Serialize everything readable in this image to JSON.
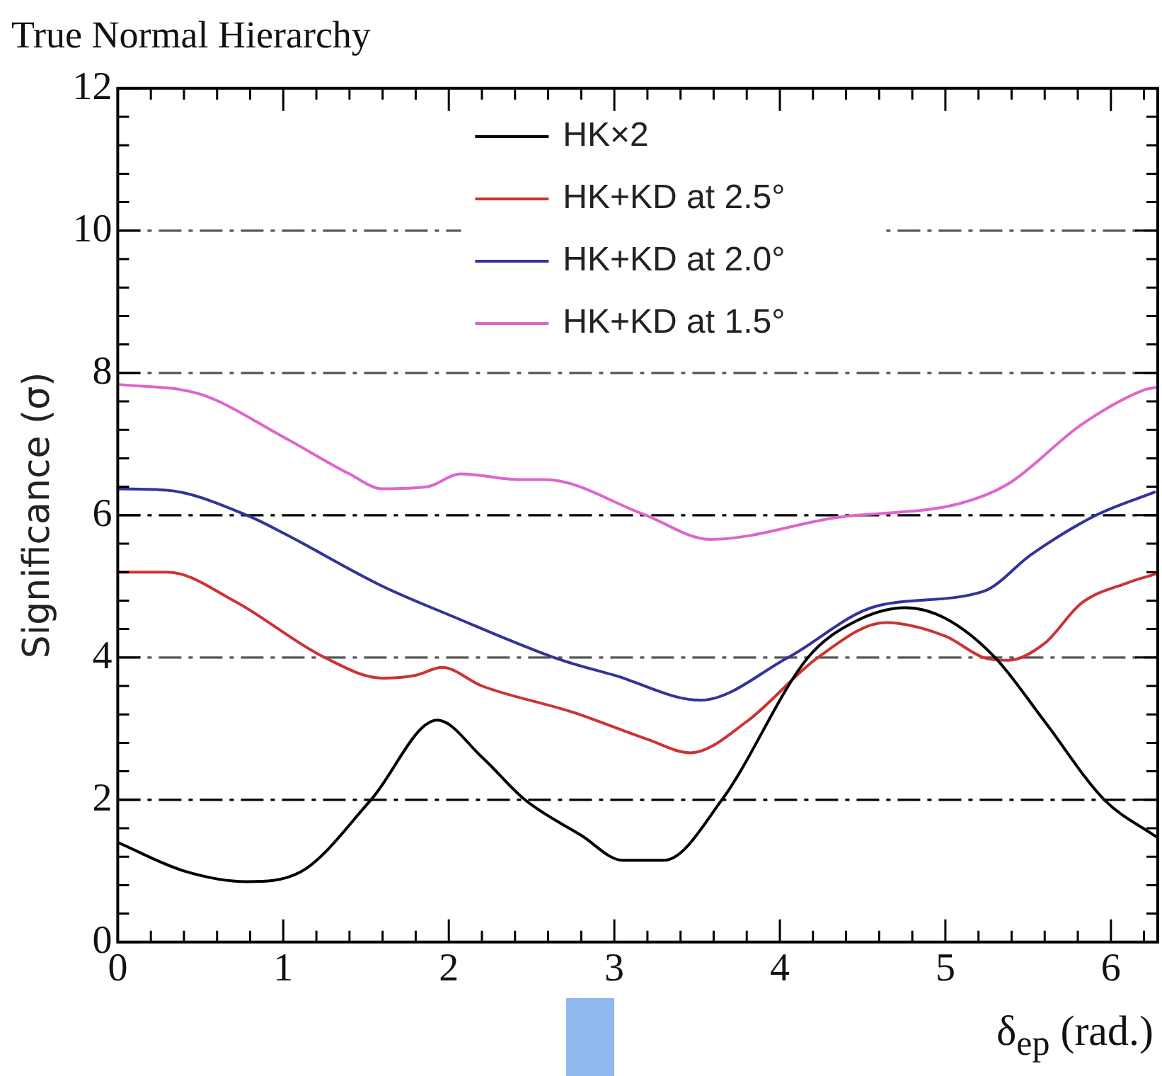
{
  "chart_data": {
    "type": "line",
    "title": "True Normal Hierarchy",
    "xlabel": "δ$_{ep}$ (rad.)",
    "ylabel": "Significance (σ)",
    "xlim": [
      0,
      6.283
    ],
    "xticks": [
      0,
      1,
      2,
      3,
      4,
      5,
      6
    ],
    "ylim": [
      0,
      12
    ],
    "yticks": [
      0,
      2,
      4,
      6,
      8,
      10,
      12
    ],
    "grid": false,
    "legend": "top",
    "marker": "none",
    "line_style": "solid",
    "ref_lines": [
      {
        "axis": "y",
        "value": 2,
        "color": "#000000",
        "line_style": "dashed"
      },
      {
        "axis": "y",
        "value": 4,
        "color": "#555555",
        "line_style": "dashed"
      },
      {
        "axis": "y",
        "value": 6,
        "color": "#000000",
        "line_style": "dashed"
      },
      {
        "axis": "y",
        "value": 8,
        "color": "#555555",
        "line_style": "dashed"
      },
      {
        "axis": "y",
        "value": 10,
        "color": "#555555",
        "line_style": "dashed"
      }
    ],
    "series": [
      {
        "name": "HK×2",
        "color": "#000000",
        "x": [
          0,
          0.4,
          0.78,
          1.1,
          1.53,
          1.93,
          2.2,
          2.46,
          2.8,
          3.05,
          3.3,
          3.65,
          4.17,
          4.45,
          4.76,
          5.0,
          5.3,
          5.6,
          5.96,
          6.28
        ],
        "values": [
          1.4,
          1.0,
          0.85,
          0.98,
          2.0,
          3.12,
          2.6,
          2.0,
          1.5,
          1.15,
          1.15,
          2.0,
          4.0,
          4.5,
          4.7,
          4.55,
          4.0,
          3.1,
          2.0,
          1.47
        ]
      },
      {
        "name": "HK+KD at 2.5°",
        "color": "#cc3333",
        "x": [
          0,
          0.3,
          0.7,
          1.25,
          1.6,
          1.8,
          1.96,
          2.2,
          2.75,
          3.2,
          3.46,
          3.8,
          4.23,
          4.64,
          5.0,
          5.23,
          5.38,
          5.6,
          5.82,
          6.1,
          6.28
        ],
        "values": [
          5.2,
          5.2,
          4.8,
          4.0,
          3.71,
          3.75,
          3.86,
          3.6,
          3.23,
          2.85,
          2.66,
          3.1,
          4.0,
          4.49,
          4.3,
          4.0,
          3.96,
          4.2,
          4.76,
          5.05,
          5.18
        ]
      },
      {
        "name": "HK+KD at 2.0°",
        "color": "#333399",
        "x": [
          0,
          0.3,
          0.78,
          1.0,
          1.6,
          2.0,
          2.66,
          3.0,
          3.52,
          4.05,
          4.58,
          5.23,
          5.52,
          5.91,
          6.27
        ],
        "values": [
          6.37,
          6.35,
          6.0,
          5.75,
          5.0,
          4.6,
          3.98,
          3.75,
          3.4,
          4.0,
          4.72,
          4.93,
          5.45,
          6.0,
          6.33
        ]
      },
      {
        "name": "HK+KD at 1.5°",
        "color": "#dd66cc",
        "x": [
          0,
          0.5,
          1.0,
          1.4,
          1.6,
          1.87,
          2.07,
          2.43,
          2.58,
          3.17,
          3.58,
          4.35,
          5.08,
          5.38,
          5.82,
          6.2,
          6.28
        ],
        "values": [
          7.84,
          7.7,
          7.1,
          6.58,
          6.37,
          6.4,
          6.58,
          6.5,
          6.5,
          6.02,
          5.66,
          5.97,
          6.16,
          6.44,
          7.27,
          7.76,
          7.8
        ]
      }
    ]
  }
}
